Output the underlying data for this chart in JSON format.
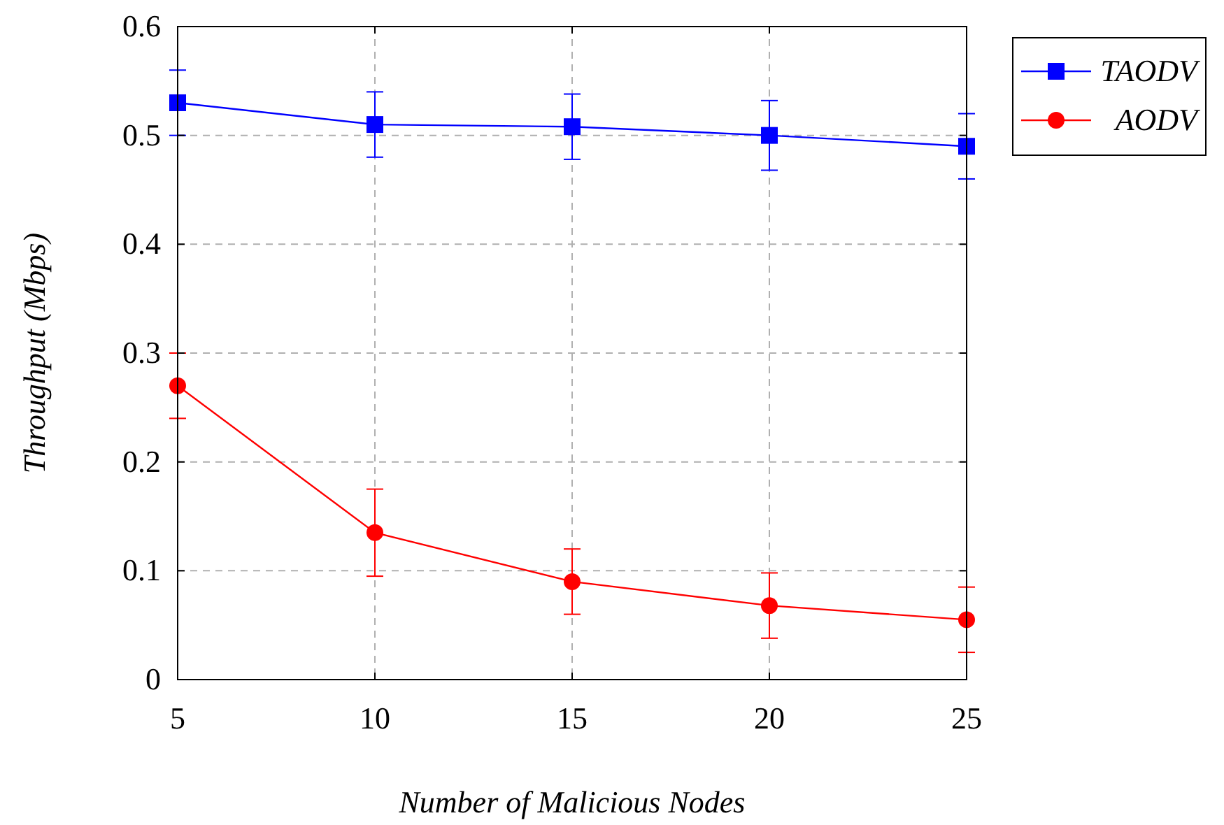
{
  "chart_data": {
    "type": "line",
    "xlabel": "Number of Malicious Nodes",
    "ylabel": "Throughput (Mbps)",
    "x": [
      5,
      10,
      15,
      20,
      25
    ],
    "xlim": [
      5,
      25
    ],
    "xticks": [
      5,
      10,
      15,
      20,
      25
    ],
    "ylim": [
      0,
      0.6
    ],
    "yticks": [
      0,
      0.1,
      0.2,
      0.3,
      0.4,
      0.5,
      0.6
    ],
    "grid": true,
    "legend": "top right",
    "line_style": "solid",
    "series": [
      {
        "name": "TAODV",
        "color": "#0000ff",
        "marker": "square",
        "values": [
          0.53,
          0.51,
          0.508,
          0.5,
          0.49
        ],
        "errors": [
          0.03,
          0.03,
          0.03,
          0.032,
          0.03
        ]
      },
      {
        "name": "AODV",
        "color": "#ff0000",
        "marker": "circle",
        "values": [
          0.27,
          0.135,
          0.09,
          0.068,
          0.055
        ],
        "errors": [
          0.03,
          0.04,
          0.03,
          0.03,
          0.03
        ]
      }
    ]
  }
}
